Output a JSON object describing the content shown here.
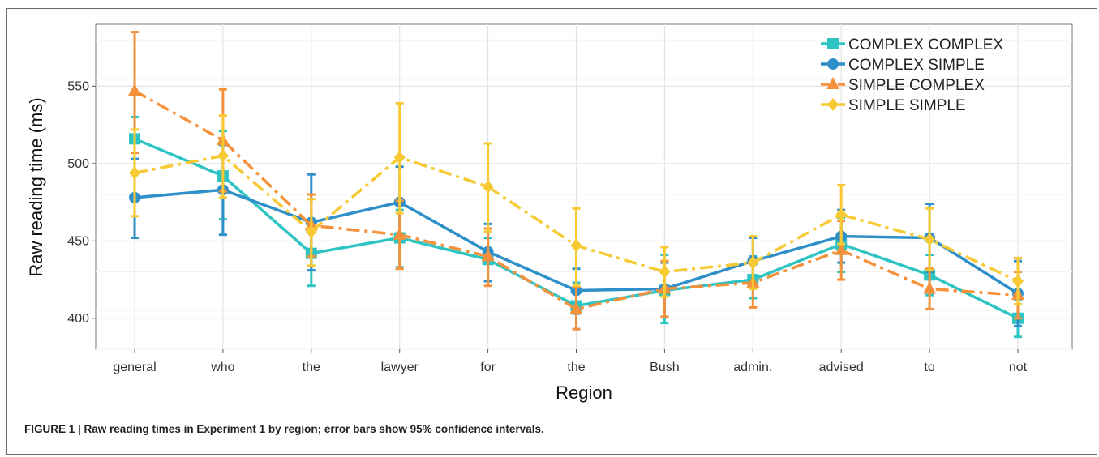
{
  "caption": "FIGURE 1 | Raw reading times in Experiment 1 by region; error bars show 95% confidence intervals.",
  "chart_data": {
    "type": "line",
    "xlabel": "Region",
    "ylabel": "Raw reading time (ms)",
    "categories": [
      "general",
      "who",
      "the",
      "lawyer",
      "for",
      "the",
      "Bush",
      "admin.",
      "advised",
      "to",
      "not"
    ],
    "ylim": [
      380,
      590
    ],
    "yticks": [
      400,
      450,
      500,
      550
    ],
    "grid": true,
    "legend_position": "top-right",
    "series": [
      {
        "name": "COMPLEX COMPLEX",
        "color": "#2ec4c4",
        "marker": "square",
        "line": "solid",
        "values": [
          516,
          492,
          442,
          452,
          438,
          408,
          418,
          425,
          448,
          428,
          400
        ],
        "ci_low": [
          503,
          464,
          421,
          433,
          424,
          393,
          397,
          413,
          430,
          415,
          388
        ],
        "ci_high": [
          530,
          521,
          462,
          470,
          452,
          423,
          441,
          440,
          465,
          441,
          412
        ]
      },
      {
        "name": "COMPLEX SIMPLE",
        "color": "#2f8fc8",
        "marker": "circle",
        "line": "solid",
        "values": [
          478,
          483,
          462,
          475,
          443,
          418,
          419,
          437,
          453,
          452,
          416
        ],
        "ci_low": [
          452,
          454,
          431,
          452,
          424,
          403,
          401,
          422,
          436,
          430,
          395
        ],
        "ci_high": [
          503,
          512,
          493,
          498,
          461,
          432,
          436,
          452,
          470,
          474,
          437
        ]
      },
      {
        "name": "SIMPLE COMPLEX",
        "color": "#f5913a",
        "marker": "triangle",
        "line": "dashdot",
        "values": [
          547,
          515,
          460,
          454,
          440,
          406,
          419,
          423,
          444,
          419,
          415
        ],
        "ci_low": [
          507,
          482,
          440,
          432,
          421,
          393,
          401,
          407,
          425,
          406,
          400
        ],
        "ci_high": [
          585,
          548,
          480,
          476,
          458,
          420,
          437,
          437,
          463,
          432,
          430
        ]
      },
      {
        "name": "SIMPLE SIMPLE",
        "color": "#f7c933",
        "marker": "diamond",
        "line": "dashdot",
        "values": [
          494,
          505,
          456,
          504,
          485,
          447,
          430,
          436,
          467,
          451,
          424
        ],
        "ci_low": [
          466,
          478,
          434,
          468,
          456,
          421,
          414,
          419,
          448,
          431,
          409
        ],
        "ci_high": [
          522,
          531,
          477,
          539,
          513,
          471,
          446,
          453,
          486,
          471,
          439
        ]
      }
    ]
  }
}
